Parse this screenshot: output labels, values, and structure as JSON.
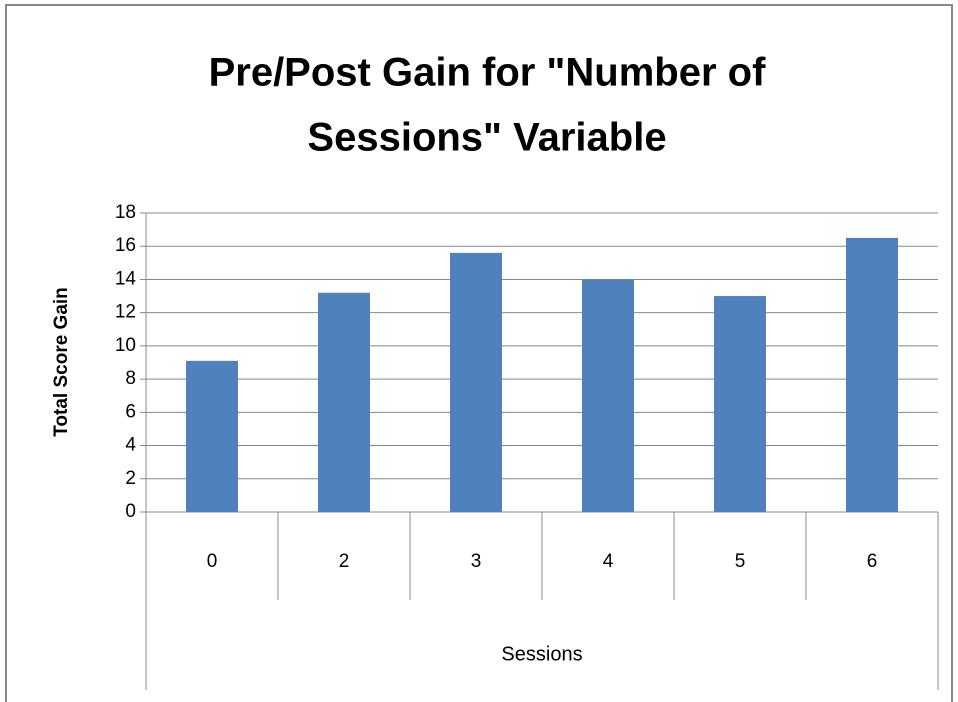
{
  "chart_data": {
    "type": "bar",
    "title": [
      "Pre/Post Gain for \"Number of",
      "Sessions\" Variable"
    ],
    "x_label": "Sessions",
    "y_label": "Total Score Gain",
    "categories": [
      "0",
      "2",
      "3",
      "4",
      "5",
      "6"
    ],
    "values": [
      9.1,
      13.2,
      15.6,
      14,
      13,
      16.5
    ],
    "color": "#4f81bd",
    "ylim": [
      0,
      18
    ],
    "yticks": [
      0,
      2,
      4,
      6,
      8,
      10,
      12,
      14,
      16,
      18
    ],
    "grid": true
  }
}
